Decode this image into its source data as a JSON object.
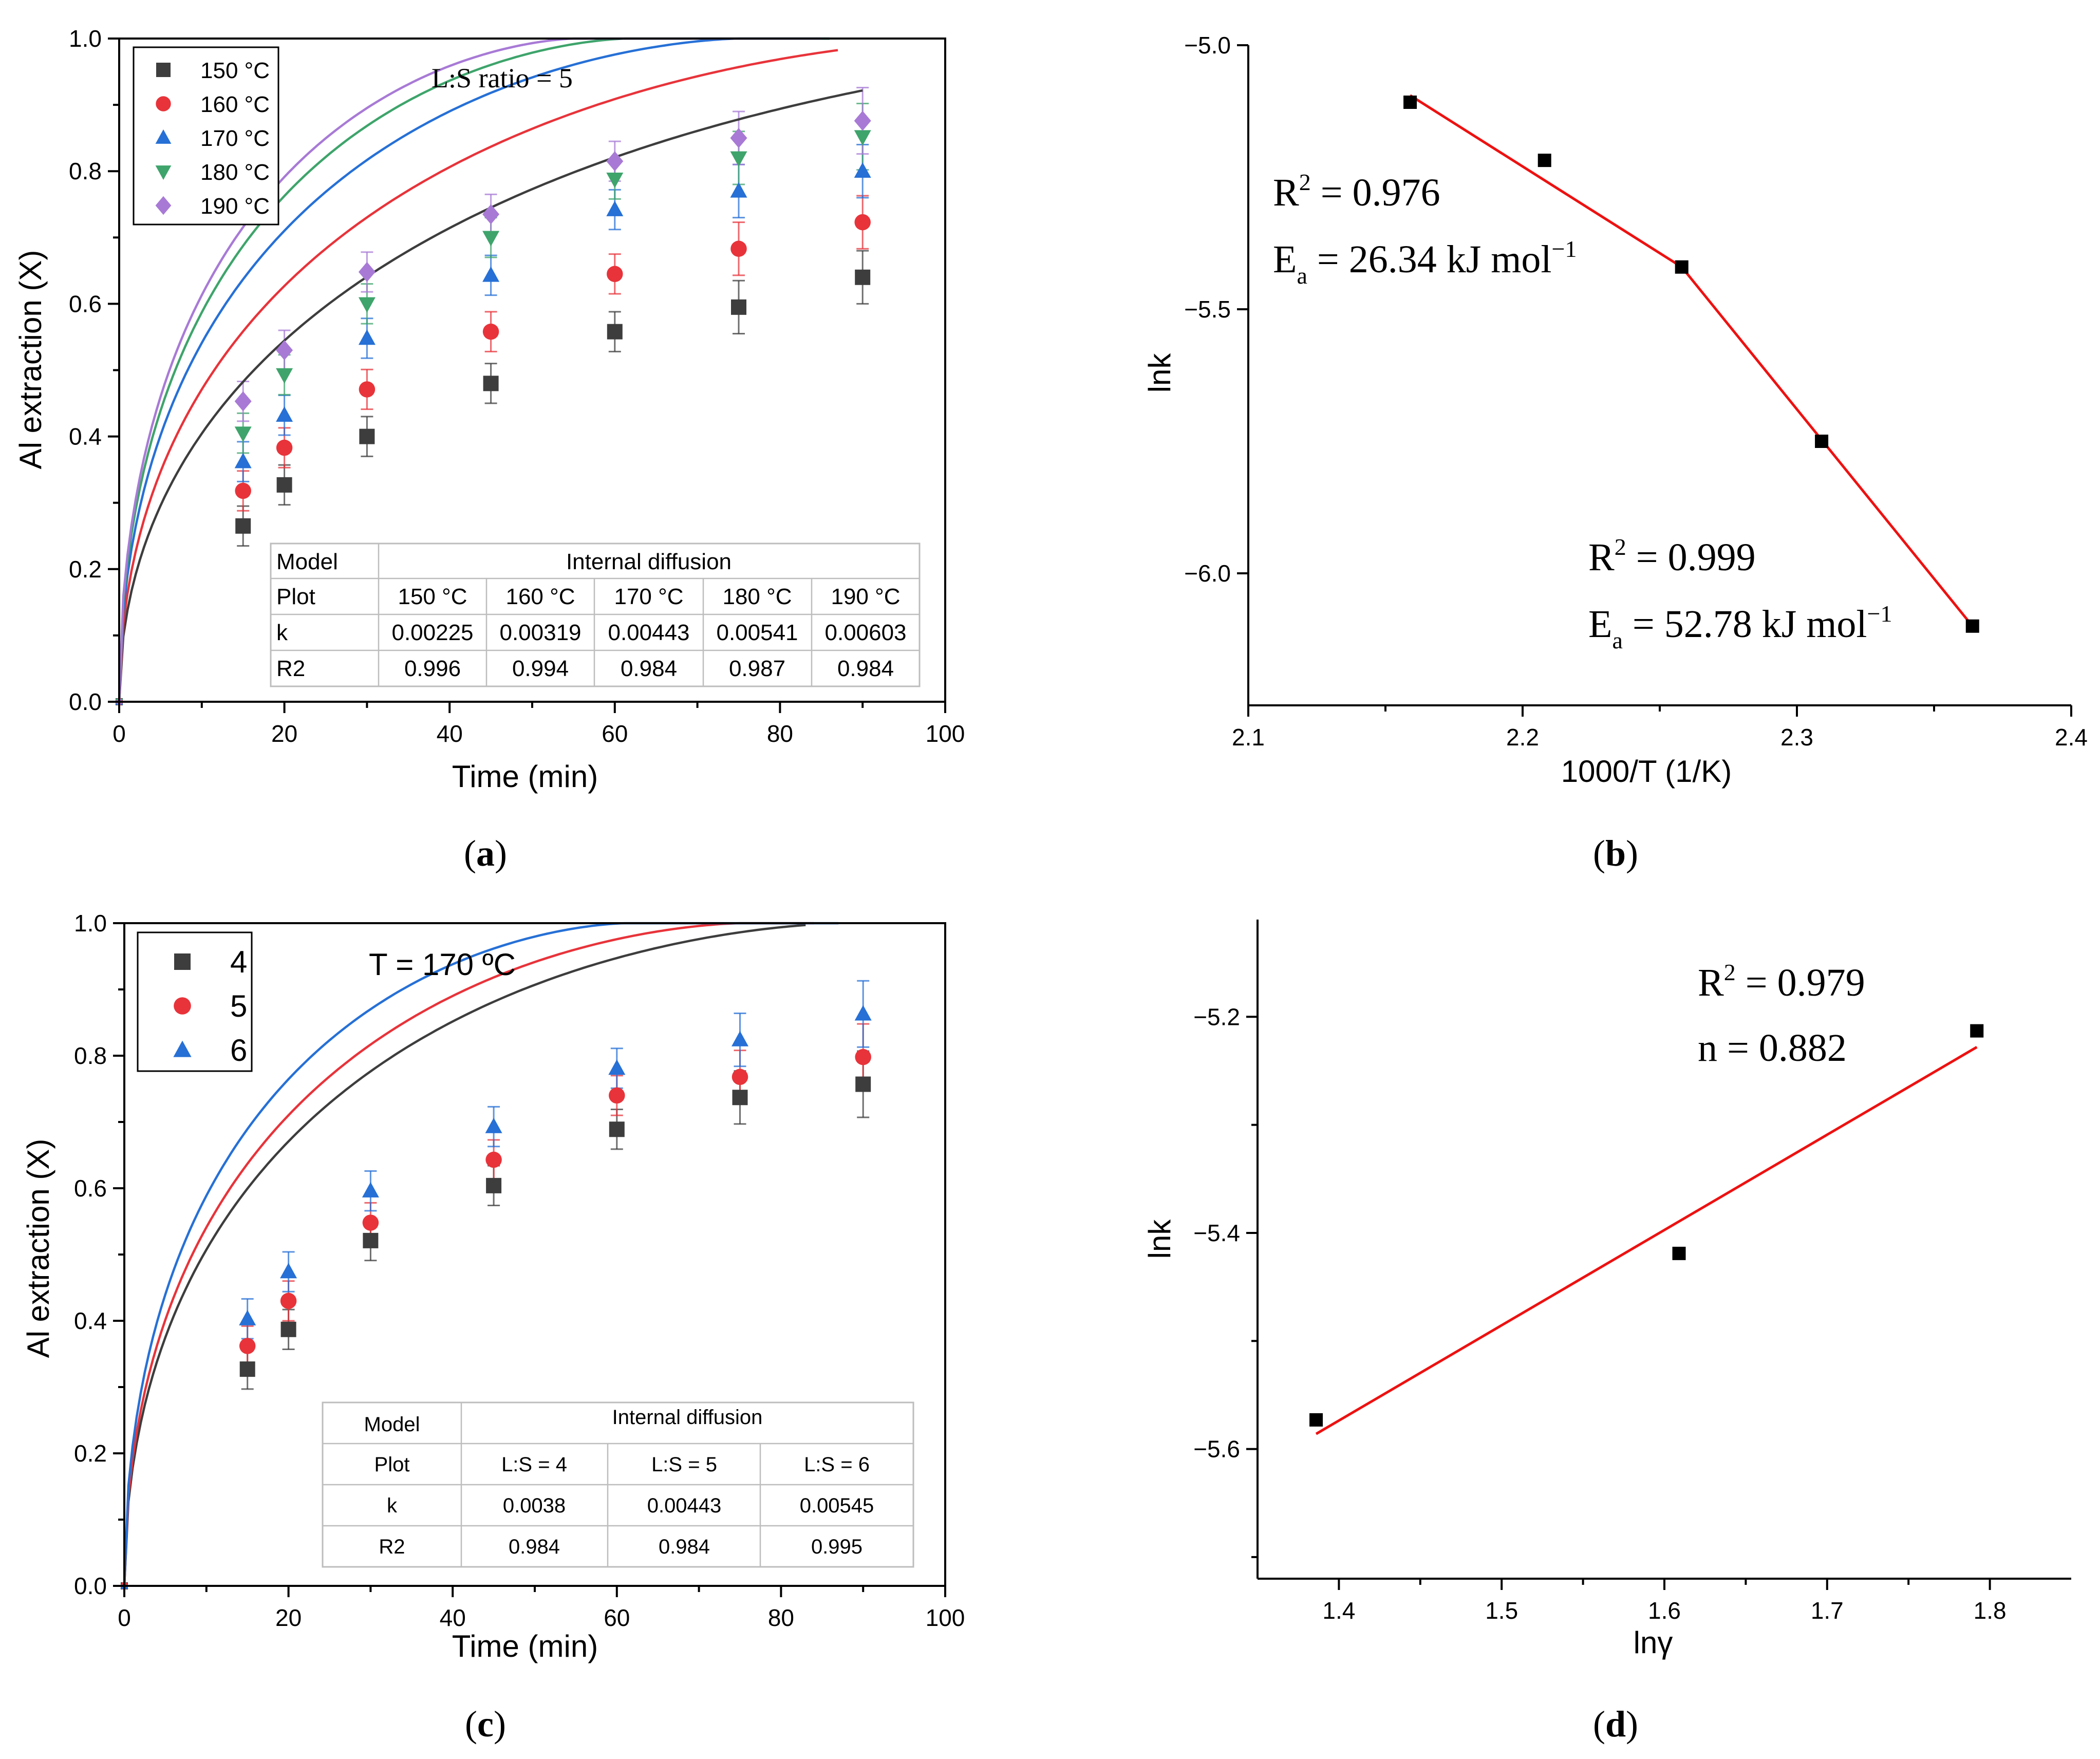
{
  "colors": {
    "150": "#3d3d3d",
    "160": "#e8333a",
    "170": "#2670d6",
    "180": "#3ea46b",
    "190": "#a87ad6",
    "fit_red": "#ee1111",
    "marker_black": "#000000"
  },
  "panel_labels": [
    "a",
    "b",
    "c",
    "d"
  ],
  "chart_data": [
    {
      "id": "a",
      "type": "scatter",
      "title": "",
      "annotation": "L:S ratio = 5",
      "xlabel": "Time (min)",
      "ylabel": "Al extraction (X)",
      "xlim": [
        0,
        100
      ],
      "ylim": [
        0,
        1.0
      ],
      "xticks": [
        "0",
        "20",
        "40",
        "60",
        "80",
        "100"
      ],
      "yticks": [
        "0.0",
        "0.2",
        "0.4",
        "0.6",
        "0.8",
        "1.0"
      ],
      "legend": "top-left",
      "x": [
        0,
        15,
        20,
        30,
        45,
        60,
        75,
        90
      ],
      "series": [
        {
          "name": "150 °C",
          "marker": "square",
          "color_key": "150",
          "values": [
            0,
            0.265,
            0.327,
            0.4,
            0.48,
            0.558,
            0.595,
            0.64
          ],
          "errors": [
            0,
            0.03,
            0.03,
            0.03,
            0.03,
            0.03,
            0.04,
            0.04
          ],
          "fit_k": 0.00225,
          "fit_end": 90
        },
        {
          "name": "160 °C",
          "marker": "circle",
          "color_key": "160",
          "values": [
            0,
            0.318,
            0.383,
            0.471,
            0.558,
            0.645,
            0.683,
            0.723
          ],
          "errors": [
            0,
            0.03,
            0.03,
            0.03,
            0.03,
            0.03,
            0.04,
            0.04
          ],
          "fit_k": 0.00319,
          "fit_end": 87
        },
        {
          "name": "170 °C",
          "marker": "triangle-up",
          "color_key": "170",
          "values": [
            0,
            0.362,
            0.432,
            0.548,
            0.643,
            0.742,
            0.77,
            0.8
          ],
          "errors": [
            0,
            0.03,
            0.03,
            0.03,
            0.03,
            0.03,
            0.04,
            0.04
          ],
          "fit_k": 0.00443,
          "fit_end": 86
        },
        {
          "name": "180 °C",
          "marker": "triangle-down",
          "color_key": "180",
          "values": [
            0,
            0.405,
            0.493,
            0.6,
            0.7,
            0.788,
            0.82,
            0.852
          ],
          "errors": [
            0,
            0.03,
            0.03,
            0.03,
            0.03,
            0.03,
            0.04,
            0.05
          ],
          "fit_k": 0.00541,
          "fit_end": 86
        },
        {
          "name": "190 °C",
          "marker": "diamond",
          "color_key": "190",
          "values": [
            0,
            0.453,
            0.53,
            0.648,
            0.735,
            0.815,
            0.85,
            0.876
          ],
          "errors": [
            0,
            0.03,
            0.03,
            0.03,
            0.03,
            0.03,
            0.04,
            0.05
          ],
          "fit_k": 0.00603,
          "fit_end": 85
        }
      ],
      "table": {
        "header_left": "Model",
        "header_right": "Internal diffusion",
        "rows": [
          [
            "Plot",
            "150 °C",
            "160 °C",
            "170 °C",
            "180 °C",
            "190 °C"
          ],
          [
            "k",
            "0.00225",
            "0.00319",
            "0.00443",
            "0.00541",
            "0.00603"
          ],
          [
            "R2",
            "0.996",
            "0.994",
            "0.984",
            "0.987",
            "0.984"
          ]
        ]
      }
    },
    {
      "id": "b",
      "type": "scatter",
      "title": "",
      "xlabel": "1000/T (1/K)",
      "ylabel": "lnk",
      "xlim": [
        2.1,
        2.4
      ],
      "ylim": [
        -6.25,
        -5.0
      ],
      "xticks": [
        "2.1",
        "2.2",
        "2.3",
        "2.4"
      ],
      "yticks": [
        "-5.0",
        "-5.5",
        "-6.0"
      ],
      "points_x": [
        2.159,
        2.208,
        2.258,
        2.309,
        2.364
      ],
      "points_y": [
        -5.108,
        -5.218,
        -5.42,
        -5.75,
        -6.1
      ],
      "fit_segments": [
        {
          "x": [
            2.159,
            2.258
          ],
          "y": [
            -5.095,
            -5.42
          ]
        },
        {
          "x": [
            2.258,
            2.364
          ],
          "y": [
            -5.42,
            -6.1
          ]
        }
      ],
      "annotations": [
        {
          "r2_label": "R",
          "r2_sup": "2",
          "r2_value": " = 0.976",
          "ea_label": "E",
          "ea_sub": "a",
          "ea_value": " = 26.34 kJ mol",
          "ea_sup": "−1"
        },
        {
          "r2_label": "R",
          "r2_sup": "2",
          "r2_value": " = 0.999",
          "ea_label": "E",
          "ea_sub": "a",
          "ea_value": " = 52.78 kJ mol",
          "ea_sup": "−1"
        }
      ]
    },
    {
      "id": "c",
      "type": "scatter",
      "title": "",
      "annotation": "T = 170 ºC",
      "xlabel": "Time (min)",
      "ylabel": "Al extraction (X)",
      "xlim": [
        0,
        100
      ],
      "ylim": [
        0,
        1.0
      ],
      "xticks": [
        "0",
        "20",
        "40",
        "60",
        "80",
        "100"
      ],
      "yticks": [
        "0.0",
        "0.2",
        "0.4",
        "0.6",
        "0.8",
        "1.0"
      ],
      "legend": "top-left",
      "x": [
        0,
        15,
        20,
        30,
        45,
        60,
        75,
        90
      ],
      "series": [
        {
          "name": "4",
          "marker": "square",
          "color_key": "150",
          "values": [
            0,
            0.327,
            0.387,
            0.521,
            0.604,
            0.689,
            0.737,
            0.757
          ],
          "errors": [
            0,
            0.03,
            0.03,
            0.03,
            0.03,
            0.03,
            0.04,
            0.05
          ],
          "fit_k": 0.0038,
          "fit_end": 83
        },
        {
          "name": "5",
          "marker": "circle",
          "color_key": "160",
          "values": [
            0,
            0.362,
            0.43,
            0.548,
            0.643,
            0.74,
            0.768,
            0.798
          ],
          "errors": [
            0,
            0.03,
            0.03,
            0.03,
            0.03,
            0.03,
            0.04,
            0.05
          ],
          "fit_k": 0.00443,
          "fit_end": 84
        },
        {
          "name": "6",
          "marker": "triangle-up",
          "color_key": "170",
          "values": [
            0,
            0.403,
            0.474,
            0.596,
            0.693,
            0.781,
            0.824,
            0.863
          ],
          "errors": [
            0,
            0.03,
            0.03,
            0.03,
            0.03,
            0.03,
            0.04,
            0.05
          ],
          "fit_k": 0.00545,
          "fit_end": 87
        }
      ],
      "table": {
        "header_left": "Model",
        "header_right": "Internal diffusion",
        "rows": [
          [
            "Plot",
            "L:S = 4",
            "L:S = 5",
            "L:S = 6"
          ],
          [
            "k",
            "0.0038",
            "0.00443",
            "0.00545"
          ],
          [
            "R2",
            "0.984",
            "0.984",
            "0.995"
          ]
        ]
      }
    },
    {
      "id": "d",
      "type": "scatter",
      "title": "",
      "xlabel": "lnγ",
      "ylabel": "lnk",
      "xlim": [
        1.35,
        1.85
      ],
      "ylim": [
        -5.72,
        -5.11
      ],
      "xticks": [
        "1.4",
        "1.5",
        "1.6",
        "1.7",
        "1.8"
      ],
      "yticks": [
        "-5.2",
        "-5.4",
        "-5.6"
      ],
      "points_x": [
        1.386,
        1.609,
        1.792
      ],
      "points_y": [
        -5.573,
        -5.419,
        -5.213
      ],
      "fit_line": {
        "x": [
          1.386,
          1.792
        ],
        "y": [
          -5.586,
          -5.228
        ]
      },
      "annotations": [
        {
          "r2_label": "R",
          "r2_sup": "2",
          "r2_value": " = 0.979",
          "n_label": "n = 0.882"
        }
      ]
    }
  ]
}
